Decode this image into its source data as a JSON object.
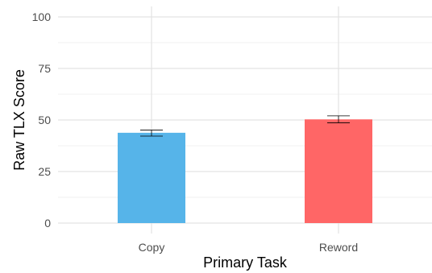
{
  "chart_data": {
    "type": "bar",
    "title": "",
    "xlabel": "Primary Task",
    "ylabel": "Raw TLX Score",
    "categories": [
      "Copy",
      "Reword"
    ],
    "values": [
      43.8,
      50.3
    ],
    "error_bars": [
      {
        "low": 42.2,
        "high": 45.1
      },
      {
        "low": 48.6,
        "high": 52.0
      }
    ],
    "colors": [
      "#56B4E9",
      "#FF6666"
    ],
    "ylim": [
      0,
      100
    ],
    "yticks": [
      0,
      25,
      50,
      75,
      100
    ],
    "grid": true,
    "legend": "none"
  }
}
